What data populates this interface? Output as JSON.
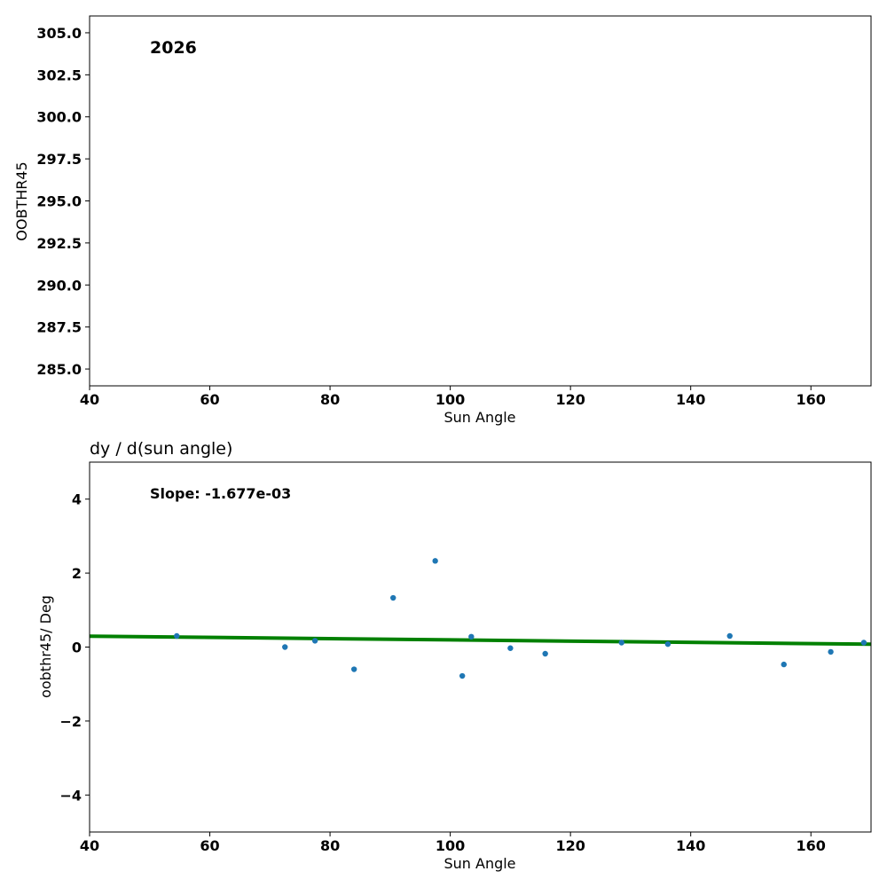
{
  "chart_data": [
    {
      "type": "scatter",
      "title": "",
      "xlabel": "Sun Angle",
      "ylabel": "OOBTHR45",
      "xlim": [
        40,
        170
      ],
      "ylim": [
        284.0,
        306.0
      ],
      "xticks": [
        40,
        60,
        80,
        100,
        120,
        140,
        160
      ],
      "yticks": [
        285.0,
        287.5,
        290.0,
        292.5,
        295.0,
        297.5,
        300.0,
        302.5,
        305.0
      ],
      "xtick_labels": [
        "40",
        "60",
        "80",
        "100",
        "120",
        "140",
        "160"
      ],
      "ytick_labels": [
        "285.0",
        "287.5",
        "290.0",
        "292.5",
        "295.0",
        "297.5",
        "300.0",
        "302.5",
        "305.0"
      ],
      "annotation": "2026",
      "series": [],
      "grid": false
    },
    {
      "type": "scatter",
      "title": "dy / d(sun angle)",
      "xlabel": "Sun Angle",
      "ylabel": "oobthr45/ Deg",
      "xlim": [
        40,
        170
      ],
      "ylim": [
        -5,
        5
      ],
      "xticks": [
        40,
        60,
        80,
        100,
        120,
        140,
        160
      ],
      "yticks": [
        -4,
        -2,
        0,
        2,
        4
      ],
      "xtick_labels": [
        "40",
        "60",
        "80",
        "100",
        "120",
        "140",
        "160"
      ],
      "ytick_labels": [
        "−4",
        "−2",
        "0",
        "2",
        "4"
      ],
      "annotation": "Slope: -1.677e-03",
      "points": {
        "x": [
          54.5,
          72.5,
          77.5,
          84.0,
          90.5,
          97.5,
          102.0,
          103.5,
          110.0,
          115.8,
          128.5,
          136.2,
          146.5,
          155.5,
          163.3,
          168.8
        ],
        "y": [
          0.3,
          0.0,
          0.17,
          -0.6,
          1.33,
          2.33,
          -0.78,
          0.28,
          -0.03,
          -0.18,
          0.12,
          0.08,
          0.3,
          -0.47,
          -0.13,
          0.12
        ],
        "color": "#1f77b4"
      },
      "fit_line": {
        "x": [
          40,
          170
        ],
        "y": [
          0.295,
          0.077
        ],
        "color": "#008000"
      },
      "grid": false
    }
  ]
}
